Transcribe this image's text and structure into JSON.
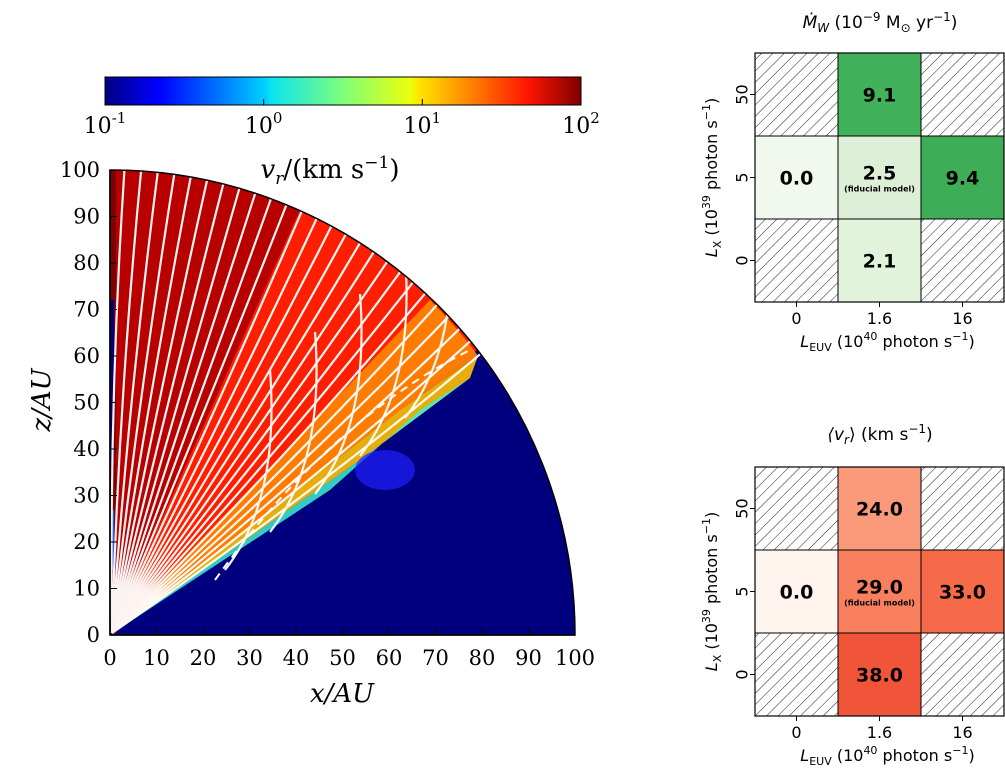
{
  "chart_data": [
    {
      "type": "heatmap",
      "subtype": "polar-quadrant velocity map with streamlines",
      "xlabel": "x/AU",
      "ylabel": "z/AU",
      "xlim": [
        0,
        100
      ],
      "ylim": [
        0,
        100
      ],
      "xticks": [
        "0",
        "10",
        "20",
        "30",
        "40",
        "50",
        "60",
        "70",
        "80",
        "90",
        "100"
      ],
      "yticks": [
        "0",
        "10",
        "20",
        "30",
        "40",
        "50",
        "60",
        "70",
        "80",
        "90",
        "100"
      ],
      "colorbar": {
        "label": "v_r/(km s^-1)",
        "label_main": "v",
        "label_sub": "r",
        "label_rest": "/(km s",
        "label_exp": "−1",
        "label_close": ")",
        "scale": "log",
        "range": [
          0.1,
          100
        ],
        "ticks": [
          {
            "base": "10",
            "exp": "-1"
          },
          {
            "base": "10",
            "exp": "0"
          },
          {
            "base": "10",
            "exp": "1"
          },
          {
            "base": "10",
            "exp": "2"
          }
        ],
        "colormap": "jet"
      },
      "grid": false
    },
    {
      "type": "heatmap",
      "title_parts": {
        "main": "Ṁ",
        "sub": "W",
        "rest": " (10",
        "exp": "−9",
        "unit": " M",
        "odot_sub": "⊙",
        "unit_rest": " yr",
        "unit_exp": "−1",
        "close": ")"
      },
      "xlabel_parts": {
        "main": "L",
        "sub": "EUV",
        "rest": " (10",
        "exp": "40",
        "unit": " photon s",
        "unit_exp": "−1",
        "close": ")"
      },
      "ylabel_parts": {
        "main": "L",
        "sub": "X",
        "rest": " (10",
        "exp": "39",
        "unit": " photon s",
        "unit_exp": "−1",
        "close": ")"
      },
      "x_categories": [
        "0",
        "1.6",
        "16"
      ],
      "y_categories": [
        "0",
        "5",
        "50"
      ],
      "cells": [
        {
          "row": 0,
          "col": 1,
          "value": "9.1",
          "color": "#41b25b"
        },
        {
          "row": 1,
          "col": 0,
          "value": "0.0",
          "color": "#f1f9ee"
        },
        {
          "row": 1,
          "col": 1,
          "value": "2.5",
          "note": "(fiducial model)",
          "color": "#deefd8"
        },
        {
          "row": 1,
          "col": 2,
          "value": "9.4",
          "color": "#3ead57"
        },
        {
          "row": 2,
          "col": 1,
          "value": "2.1",
          "color": "#e2f3dc"
        }
      ],
      "missing_cells": [
        [
          0,
          0
        ],
        [
          0,
          2
        ],
        [
          2,
          0
        ],
        [
          2,
          2
        ]
      ]
    },
    {
      "type": "heatmap",
      "title_parts": {
        "main": "⟨v",
        "sub": "r",
        "rest": "⟩ (km s",
        "exp": "−1",
        "close": ")"
      },
      "xlabel_parts": {
        "main": "L",
        "sub": "EUV",
        "rest": " (10",
        "exp": "40",
        "unit": " photon s",
        "unit_exp": "−1",
        "close": ")"
      },
      "ylabel_parts": {
        "main": "L",
        "sub": "X",
        "rest": " (10",
        "exp": "39",
        "unit": " photon s",
        "unit_exp": "−1",
        "close": ")"
      },
      "x_categories": [
        "0",
        "1.6",
        "16"
      ],
      "y_categories": [
        "0",
        "5",
        "50"
      ],
      "cells": [
        {
          "row": 0,
          "col": 1,
          "value": "24.0",
          "color": "#fb9a7a"
        },
        {
          "row": 1,
          "col": 0,
          "value": "0.0",
          "color": "#fff3ee"
        },
        {
          "row": 1,
          "col": 1,
          "value": "29.0",
          "note": "(fiducial model)",
          "color": "#f9805e"
        },
        {
          "row": 1,
          "col": 2,
          "value": "33.0",
          "color": "#f76a49"
        },
        {
          "row": 2,
          "col": 1,
          "value": "38.0",
          "color": "#f0553a"
        }
      ],
      "missing_cells": [
        [
          0,
          0
        ],
        [
          0,
          2
        ],
        [
          2,
          0
        ],
        [
          2,
          2
        ]
      ]
    }
  ]
}
